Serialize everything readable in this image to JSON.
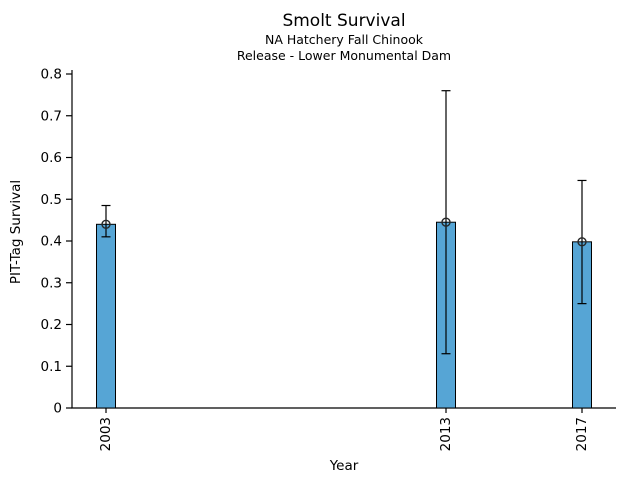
{
  "chart_data": {
    "type": "bar",
    "title": "Smolt Survival",
    "subtitles": [
      "NA Hatchery Fall Chinook",
      "Release - Lower Monumental Dam"
    ],
    "xlabel": "Year",
    "ylabel": "PIT-Tag Survival",
    "categories": [
      "2003",
      "2013",
      "2017"
    ],
    "x": [
      2003,
      2013,
      2017
    ],
    "series": [
      {
        "name": "PIT-Tag Survival",
        "values": [
          0.44,
          0.445,
          0.398
        ],
        "error_low": [
          0.41,
          0.13,
          0.25
        ],
        "error_high": [
          0.485,
          0.76,
          0.545
        ]
      }
    ],
    "xlim": [
      2002,
      2018
    ],
    "ylim": [
      0,
      0.8
    ],
    "yticks": [
      "0",
      "0.1",
      "0.2",
      "0.3",
      "0.4",
      "0.5",
      "0.6",
      "0.7",
      "0.8"
    ],
    "grid": false,
    "legend": "none",
    "marker": "open-circle",
    "bar_color": "#56a5d5",
    "bar_edge_color": "#000000",
    "error_color": "#000000",
    "marker_edge_color": "#262626",
    "axis_color": "#000000"
  }
}
